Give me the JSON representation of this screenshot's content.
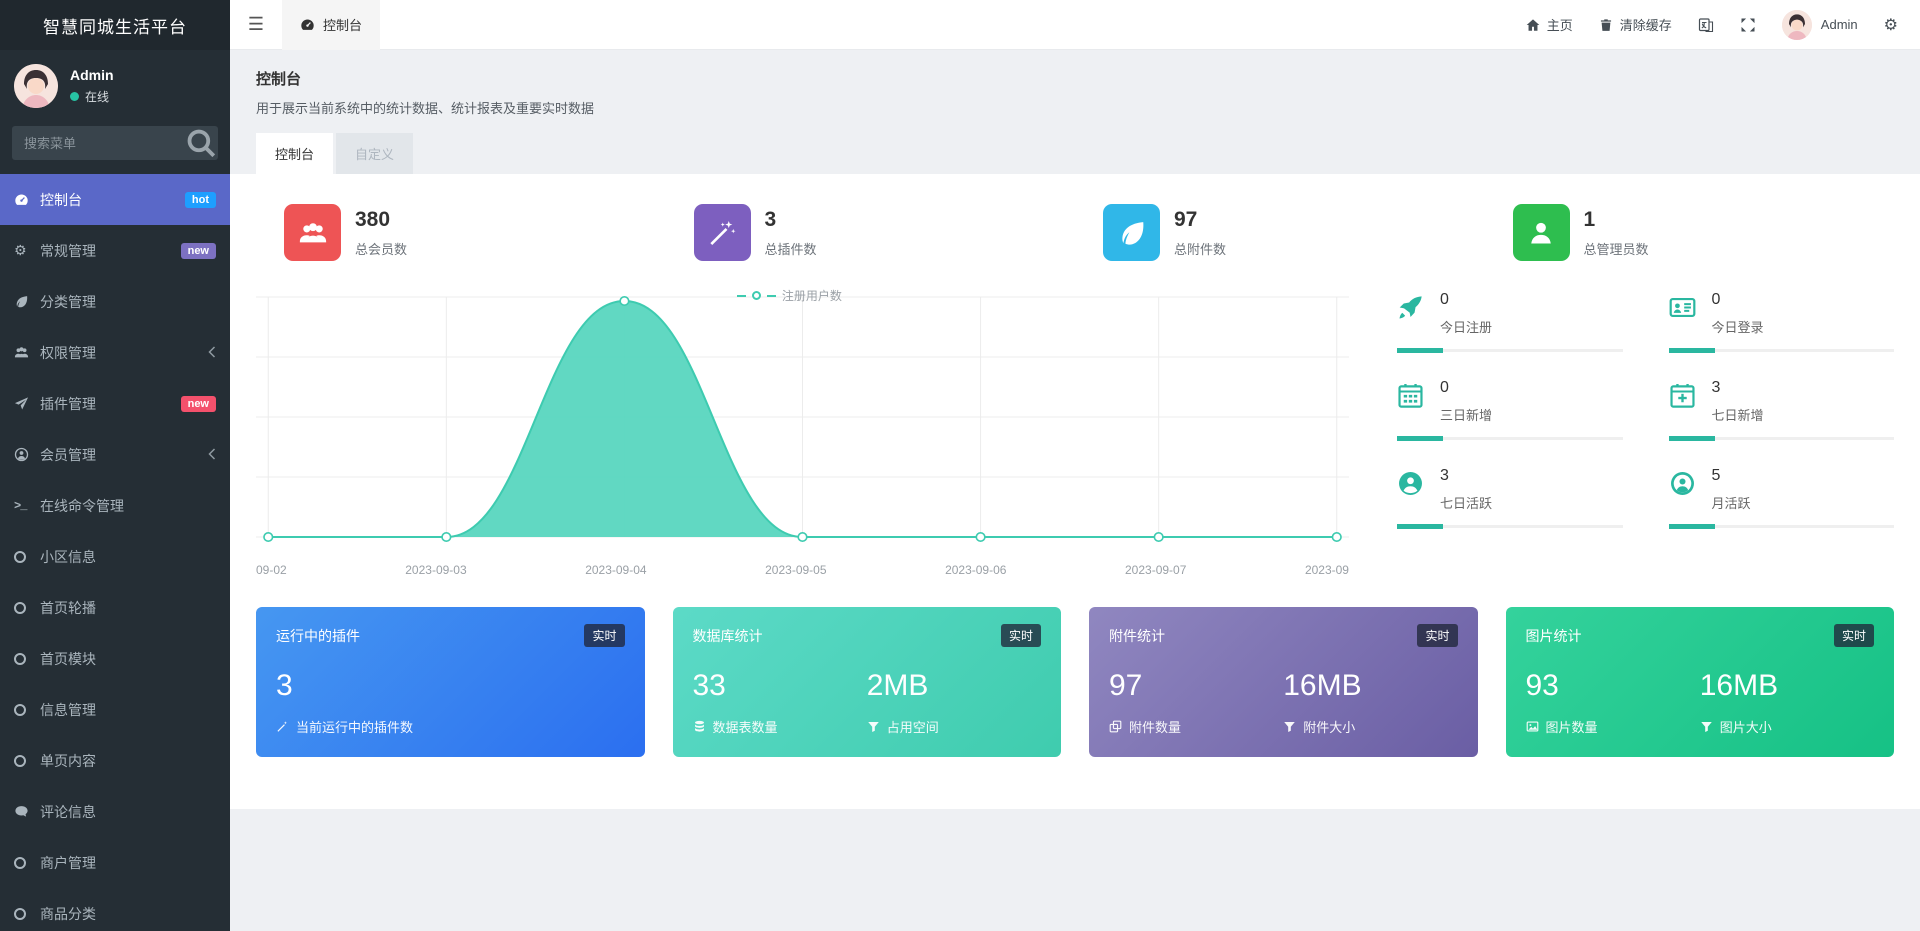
{
  "app": {
    "title": "智慧同城生活平台"
  },
  "icons": {
    "hamburger": "☰",
    "gear": "⚙",
    "gears": "⚙",
    "terminal": ">_"
  },
  "sidebar": {
    "user": {
      "name": "Admin",
      "status_label": "在线",
      "status_color": "#27c2a3"
    },
    "search": {
      "placeholder": "搜索菜单"
    },
    "items": [
      {
        "label": "控制台",
        "badge": "hot",
        "badge_color": "#1e9fff",
        "active": true
      },
      {
        "label": "常规管理",
        "badge": "new",
        "badge_color": "#7d71c2"
      },
      {
        "label": "分类管理"
      },
      {
        "label": "权限管理",
        "has_children": true
      },
      {
        "label": "插件管理",
        "badge": "new",
        "badge_color": "#f4516c"
      },
      {
        "label": "会员管理",
        "has_children": true
      },
      {
        "label": "在线命令管理"
      },
      {
        "label": "小区信息"
      },
      {
        "label": "首页轮播"
      },
      {
        "label": "首页模块"
      },
      {
        "label": "信息管理"
      },
      {
        "label": "单页内容"
      },
      {
        "label": "评论信息"
      },
      {
        "label": "商户管理"
      },
      {
        "label": "商品分类"
      }
    ]
  },
  "navbar": {
    "tab_label": "控制台",
    "home_label": "主页",
    "clear_cache_label": "清除缓存",
    "username": "Admin"
  },
  "page": {
    "title": "控制台",
    "subtitle": "用于展示当前系统中的统计数据、统计报表及重要实时数据",
    "tabs": [
      {
        "label": "控制台",
        "active": true
      },
      {
        "label": "自定义",
        "active": false
      }
    ]
  },
  "summary_cards": [
    {
      "value": "380",
      "label": "总会员数",
      "color": "#ee5455"
    },
    {
      "value": "3",
      "label": "总插件数",
      "color": "#7d5fbf"
    },
    {
      "value": "97",
      "label": "总附件数",
      "color": "#30b7e8"
    },
    {
      "value": "1",
      "label": "总管理员数",
      "color": "#2ebe4f"
    }
  ],
  "chart_data": {
    "type": "area",
    "title": "注册用户数",
    "legend": [
      "注册用户数"
    ],
    "legend_position": "top",
    "categories": [
      "09-02",
      "2023-09-03",
      "2023-09-04",
      "2023-09-05",
      "2023-09-06",
      "2023-09-07",
      "2023-09"
    ],
    "values": [
      0,
      0,
      380,
      0,
      0,
      0,
      0
    ],
    "ylim": [
      0,
      380
    ],
    "grid": true,
    "line_color": "#3ecbb0",
    "fill_color": "#58d6bf",
    "marker": "hollow-circle"
  },
  "mini_stats": [
    {
      "value": "0",
      "label": "今日注册"
    },
    {
      "value": "0",
      "label": "今日登录"
    },
    {
      "value": "0",
      "label": "三日新增"
    },
    {
      "value": "3",
      "label": "七日新增"
    },
    {
      "value": "3",
      "label": "七日活跃"
    },
    {
      "value": "5",
      "label": "月活跃"
    }
  ],
  "realtime_panels": [
    {
      "title": "运行中的插件",
      "badge": "实时",
      "gradient": [
        "#4697f1",
        "#2b6ff0"
      ],
      "items": [
        {
          "value": "3",
          "label": "当前运行中的插件数"
        }
      ]
    },
    {
      "title": "数据库统计",
      "badge": "实时",
      "gradient": [
        "#5cdac7",
        "#3fccae"
      ],
      "items": [
        {
          "value": "33",
          "label": "数据表数量"
        },
        {
          "value": "2MB",
          "label": "占用空间"
        }
      ]
    },
    {
      "title": "附件统计",
      "badge": "实时",
      "gradient": [
        "#9087c0",
        "#6a5ea4"
      ],
      "items": [
        {
          "value": "97",
          "label": "附件数量"
        },
        {
          "value": "16MB",
          "label": "附件大小"
        }
      ]
    },
    {
      "title": "图片统计",
      "badge": "实时",
      "gradient": [
        "#34d29c",
        "#16c185"
      ],
      "items": [
        {
          "value": "93",
          "label": "图片数量"
        },
        {
          "value": "16MB",
          "label": "图片大小"
        }
      ]
    }
  ]
}
